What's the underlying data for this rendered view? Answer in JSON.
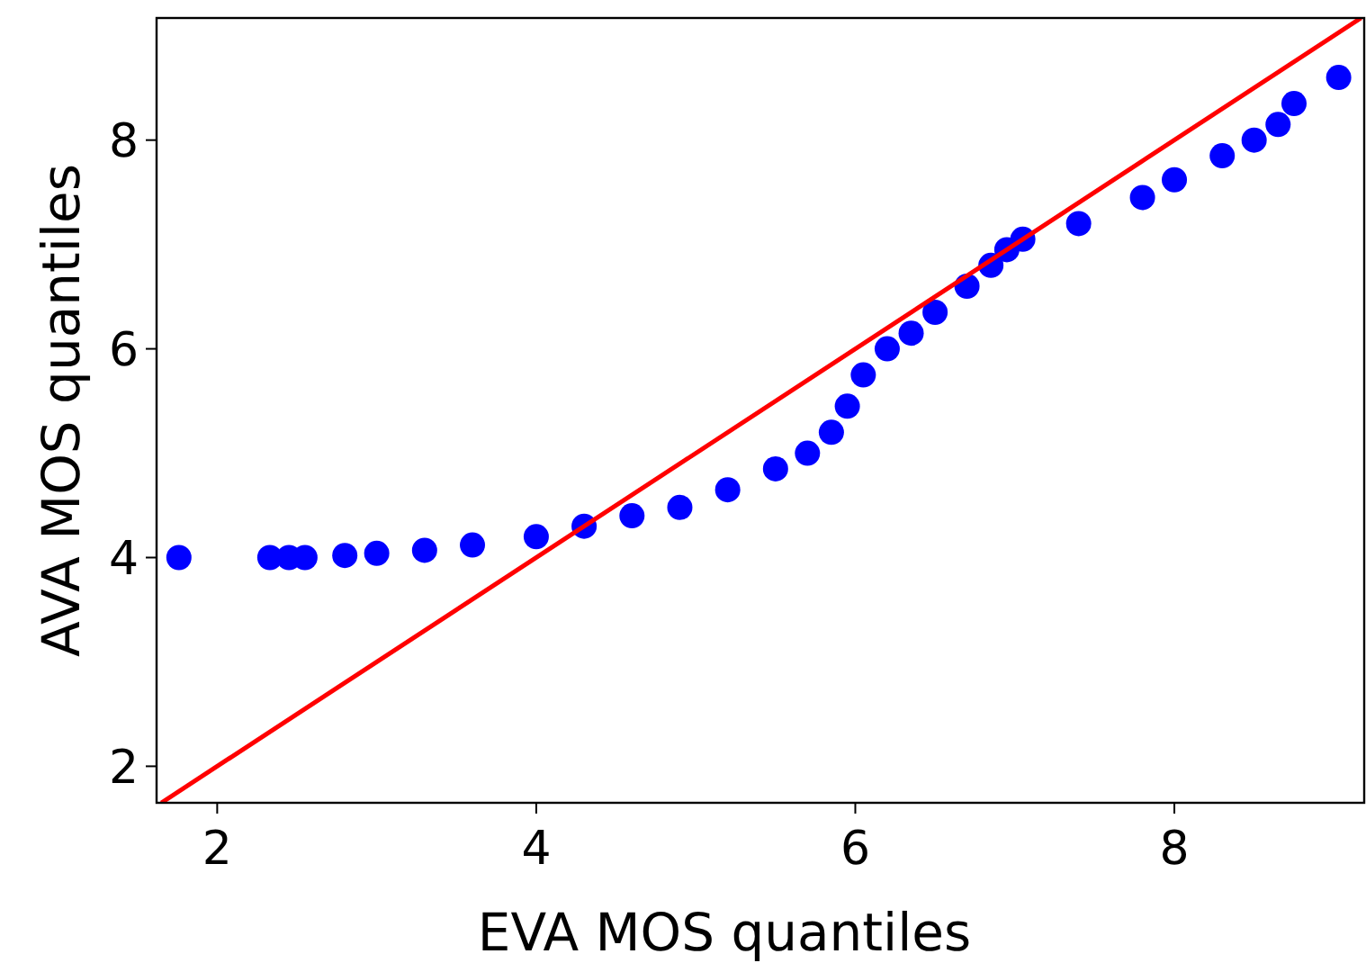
{
  "chart_data": {
    "type": "scatter",
    "xlabel": "EVA MOS quantiles",
    "ylabel": "AVA MOS quantiles",
    "xlim": [
      1.62,
      9.19
    ],
    "ylim": [
      1.65,
      9.17
    ],
    "xticks": [
      2,
      4,
      6,
      8
    ],
    "yticks": [
      2,
      4,
      6,
      8
    ],
    "grid": false,
    "marker": "circle",
    "series": [
      {
        "color": "#0000ff",
        "x": [
          1.76,
          2.33,
          2.45,
          2.55,
          2.8,
          3.0,
          3.3,
          3.6,
          4.0,
          4.3,
          4.6,
          4.9,
          5.2,
          5.5,
          5.7,
          5.85,
          5.95,
          6.05,
          6.2,
          6.35,
          6.5,
          6.7,
          6.85,
          6.95,
          7.05,
          7.4,
          7.8,
          8.0,
          8.3,
          8.5,
          8.65,
          8.75,
          9.03
        ],
        "values": [
          4.0,
          4.0,
          4.0,
          4.0,
          4.02,
          4.04,
          4.07,
          4.12,
          4.2,
          4.3,
          4.4,
          4.48,
          4.65,
          4.85,
          5.0,
          5.2,
          5.45,
          5.75,
          6.0,
          6.15,
          6.35,
          6.6,
          6.8,
          6.95,
          7.05,
          7.2,
          7.45,
          7.62,
          7.85,
          8.0,
          8.15,
          8.35,
          8.6
        ]
      },
      {
        "type": "line",
        "color": "#ff0000",
        "marker": "none",
        "x": [
          1.65,
          9.17
        ],
        "values": [
          1.65,
          9.17
        ]
      }
    ]
  }
}
